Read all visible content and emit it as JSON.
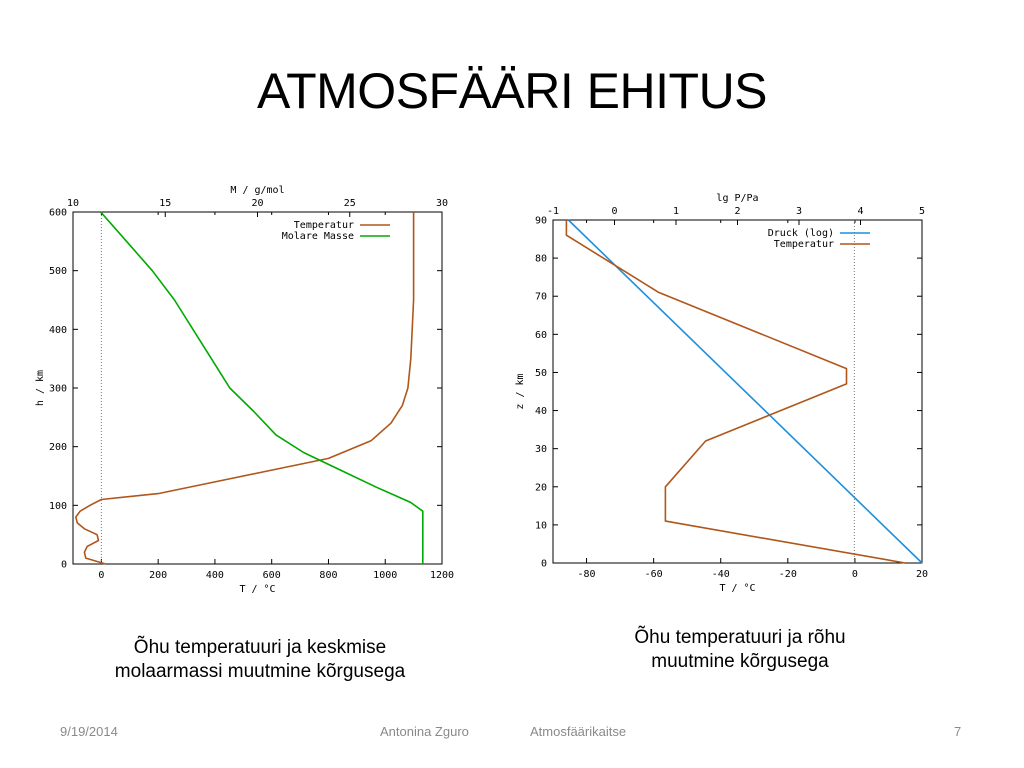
{
  "slide": {
    "title": "ATMOSFÄÄRI EHITUS"
  },
  "captions": {
    "left_line1": "Õhu temperatuuri ja keskmise",
    "left_line2": "molaarmassi  muutmine kõrgusega",
    "right_line1": "Õhu temperatuuri ja rõhu",
    "right_line2": "muutmine kõrgusega"
  },
  "footer": {
    "date": "9/19/2014",
    "author": "Antonina Zguro",
    "subject": "Atmosfäärikaitse",
    "page": "7"
  },
  "chart_data": [
    {
      "type": "line",
      "xlabel": "T / °C",
      "x2label": "M / g/mol",
      "ylabel": "h / km",
      "xlim": [
        -100,
        1200
      ],
      "x2lim": [
        10,
        30
      ],
      "ylim": [
        0,
        600
      ],
      "xticks": [
        0,
        200,
        400,
        600,
        800,
        1000,
        1200
      ],
      "x2ticks": [
        10,
        15,
        20,
        25,
        30
      ],
      "yticks": [
        0,
        100,
        200,
        300,
        400,
        500,
        600
      ],
      "reference_line_x": 0,
      "legend_position": "top-right",
      "grid": false,
      "series": [
        {
          "name": "Temperatur",
          "axis": "bottom",
          "color": "#b0561a",
          "points": [
            [
              15,
              0
            ],
            [
              -55,
              10
            ],
            [
              -60,
              20
            ],
            [
              -50,
              30
            ],
            [
              -10,
              40
            ],
            [
              -15,
              50
            ],
            [
              -60,
              60
            ],
            [
              -85,
              70
            ],
            [
              -90,
              80
            ],
            [
              -75,
              90
            ],
            [
              -40,
              100
            ],
            [
              0,
              110
            ],
            [
              200,
              120
            ],
            [
              400,
              140
            ],
            [
              600,
              160
            ],
            [
              800,
              180
            ],
            [
              950,
              210
            ],
            [
              1020,
              240
            ],
            [
              1060,
              270
            ],
            [
              1080,
              300
            ],
            [
              1090,
              350
            ],
            [
              1095,
              400
            ],
            [
              1100,
              450
            ],
            [
              1100,
              500
            ],
            [
              1100,
              550
            ],
            [
              1100,
              600
            ]
          ]
        },
        {
          "name": "Molare Masse",
          "axis": "top",
          "color": "#00aa00",
          "points": [
            [
              28.96,
              0
            ],
            [
              28.96,
              50
            ],
            [
              28.96,
              90
            ],
            [
              28.3,
              105
            ],
            [
              26.5,
              130
            ],
            [
              24.5,
              160
            ],
            [
              22.5,
              190
            ],
            [
              21,
              220
            ],
            [
              19.8,
              260
            ],
            [
              18.5,
              300
            ],
            [
              17.5,
              350
            ],
            [
              16.5,
              400
            ],
            [
              15.5,
              450
            ],
            [
              14.3,
              500
            ],
            [
              12.9,
              550
            ],
            [
              11.5,
              600
            ]
          ]
        }
      ]
    },
    {
      "type": "line",
      "xlabel": "T / °C",
      "x2label": "lg P/Pa",
      "ylabel": "z / km",
      "xlim": [
        -90,
        20
      ],
      "x2lim": [
        -1,
        5
      ],
      "ylim": [
        0,
        90
      ],
      "xticks": [
        -80,
        -60,
        -40,
        -20,
        0,
        20
      ],
      "x2ticks": [
        -1,
        0,
        1,
        2,
        3,
        4,
        5
      ],
      "yticks": [
        0,
        10,
        20,
        30,
        40,
        50,
        60,
        70,
        80,
        90
      ],
      "reference_line_x2": 3.9,
      "legend_position": "top-right",
      "grid": false,
      "series": [
        {
          "name": "Druck (log)",
          "axis": "top",
          "color": "#1f8fdc",
          "points": [
            [
              5.0,
              0
            ],
            [
              -0.75,
              90
            ]
          ]
        },
        {
          "name": "Temperatur",
          "axis": "bottom",
          "color": "#b0561a",
          "points": [
            [
              15,
              0
            ],
            [
              -56.5,
              11
            ],
            [
              -56.5,
              20
            ],
            [
              -44.5,
              32
            ],
            [
              -2.5,
              47
            ],
            [
              -2.5,
              51
            ],
            [
              -58.5,
              71
            ],
            [
              -86,
              86
            ],
            [
              -86,
              90
            ]
          ]
        }
      ]
    }
  ]
}
